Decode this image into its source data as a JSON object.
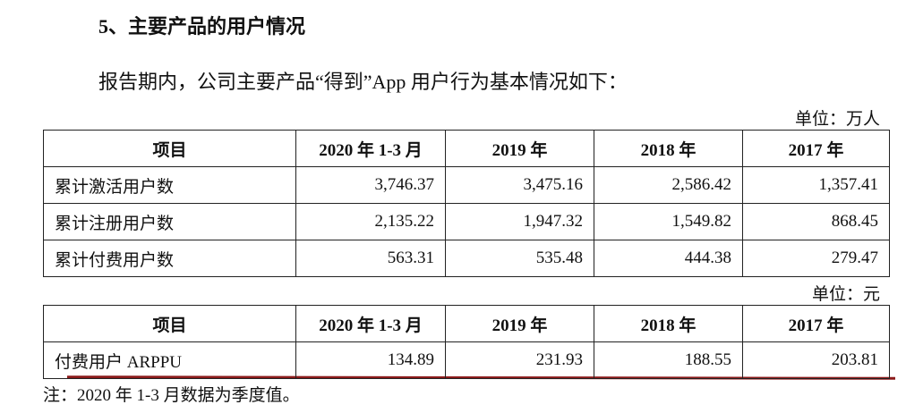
{
  "heading": "5、主要产品的用户情况",
  "intro": "报告期内，公司主要产品“得到”App 用户行为基本情况如下：",
  "tables": [
    {
      "unit": "单位：万人",
      "header": [
        "项目",
        "2020 年 1-3 月",
        "2019 年",
        "2018 年",
        "2017 年"
      ],
      "rows": [
        [
          "累计激活用户数",
          "3,746.37",
          "3,475.16",
          "2,586.42",
          "1,357.41"
        ],
        [
          "累计注册用户数",
          "2,135.22",
          "1,947.32",
          "1,549.82",
          "868.45"
        ],
        [
          "累计付费用户数",
          "563.31",
          "535.48",
          "444.38",
          "279.47"
        ]
      ]
    },
    {
      "unit": "单位：元",
      "header": [
        "项目",
        "2020 年 1-3 月",
        "2019 年",
        "2018 年",
        "2017 年"
      ],
      "rows": [
        [
          "付费用户 ARPPU",
          "134.89",
          "231.93",
          "188.55",
          "203.81"
        ]
      ]
    }
  ],
  "note": "注：2020 年 1-3 月数据为季度值。"
}
